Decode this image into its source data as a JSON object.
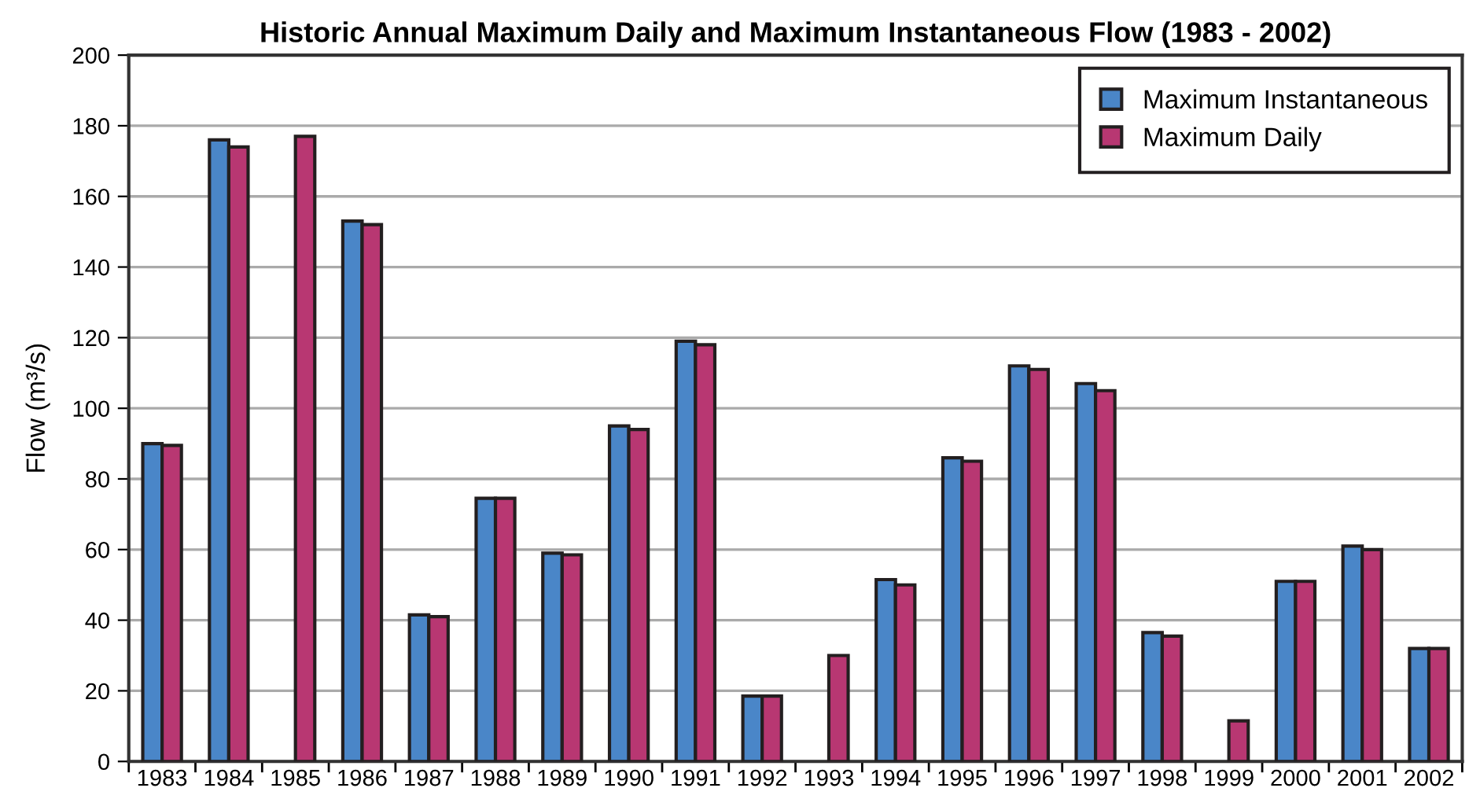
{
  "chart_data": {
    "type": "bar",
    "title": "Historic Annual Maximum Daily and Maximum Instantaneous Flow (1983 - 2002)",
    "ylabel": "Flow (m³/s)",
    "categories": [
      "1983",
      "1984",
      "1985",
      "1986",
      "1987",
      "1988",
      "1989",
      "1990",
      "1991",
      "1992",
      "1993",
      "1994",
      "1995",
      "1996",
      "1997",
      "1998",
      "1999",
      "2000",
      "2001",
      "2002"
    ],
    "series": [
      {
        "name": "Maximum Instantaneous",
        "color": "#4a86c8",
        "values": [
          90,
          176,
          null,
          153,
          41.5,
          74.5,
          59,
          95,
          119,
          18.5,
          null,
          51.5,
          86,
          112,
          107,
          36.5,
          null,
          51,
          61,
          32
        ]
      },
      {
        "name": "Maximum Daily",
        "color": "#b83772",
        "values": [
          89.5,
          174,
          177,
          152,
          41,
          74.5,
          58.5,
          94,
          118,
          18.5,
          30,
          50,
          85,
          111,
          105,
          35.5,
          11.5,
          51,
          60,
          32
        ]
      }
    ],
    "ylim": [
      0,
      200
    ],
    "yticks": [
      0,
      20,
      40,
      60,
      80,
      100,
      120,
      140,
      160,
      180,
      200
    ],
    "grid": "y",
    "legend": "top right"
  }
}
